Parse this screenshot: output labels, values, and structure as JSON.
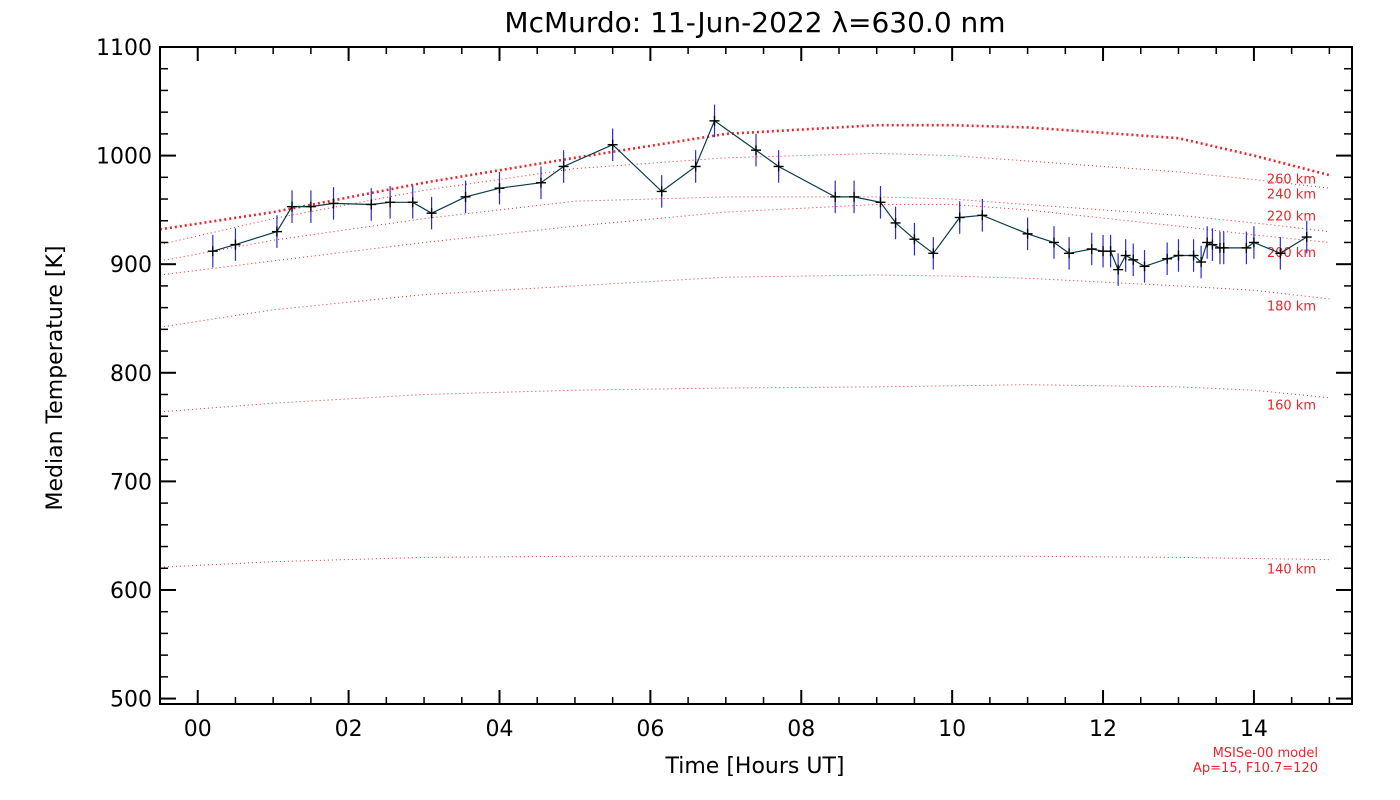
{
  "chart_data": {
    "type": "line",
    "title": "McMurdo: 11-Jun-2022 λ=630.0 nm",
    "xlabel": "Time [Hours UT]",
    "ylabel": "Median Temperature [K]",
    "xlim": [
      -0.5,
      15.3
    ],
    "ylim": [
      495,
      1100
    ],
    "xticks": [
      0,
      2,
      4,
      6,
      8,
      10,
      12,
      14
    ],
    "xtick_labels": [
      "00",
      "02",
      "04",
      "06",
      "08",
      "10",
      "12",
      "14"
    ],
    "yticks": [
      500,
      600,
      700,
      800,
      900,
      1000,
      1100
    ],
    "ytick_labels": [
      "500",
      "600",
      "700",
      "800",
      "900",
      "1000",
      "1100"
    ],
    "grid": false,
    "colors": {
      "data_line": "#0a3a4a",
      "error_bars": "#2b2bd6",
      "markers": "#000000",
      "model": "#e8262b",
      "axes": "#000000"
    },
    "series": [
      {
        "kind": "measured",
        "error": 15,
        "x": [
          0.2,
          0.5,
          1.05,
          1.25,
          1.5,
          1.8,
          2.3,
          2.55,
          2.85,
          3.1,
          3.55,
          4.0,
          4.55,
          4.85,
          5.5,
          6.15,
          6.6,
          6.85,
          7.4,
          7.7,
          8.45,
          8.7,
          9.05,
          9.25,
          9.5,
          9.75,
          10.1,
          10.4,
          11.0,
          11.35,
          11.55,
          11.85,
          12.0,
          12.1,
          12.2,
          12.3,
          12.4,
          12.55,
          12.85,
          13.0,
          13.2,
          13.3,
          13.38,
          13.45,
          13.55,
          13.6,
          13.9,
          14.0,
          14.35,
          14.7
        ],
        "y": [
          912,
          918,
          930,
          953,
          953,
          956,
          955,
          957,
          957,
          947,
          962,
          970,
          975,
          990,
          1010,
          967,
          990,
          1032,
          1005,
          990,
          962,
          962,
          957,
          938,
          923,
          910,
          943,
          945,
          928,
          920,
          910,
          914,
          912,
          912,
          895,
          908,
          904,
          898,
          905,
          908,
          908,
          902,
          920,
          918,
          915,
          915,
          915,
          920,
          910,
          925
        ]
      },
      {
        "kind": "model",
        "name": "260 km",
        "x": [
          -0.5,
          1,
          3,
          5,
          7,
          9,
          10,
          11,
          13,
          14,
          15
        ],
        "y": [
          932,
          948,
          975,
          998,
          1020,
          1028,
          1028,
          1026,
          1016,
          1000,
          982
        ]
      },
      {
        "kind": "model",
        "name": "240 km",
        "x": [
          -0.5,
          1,
          3,
          5,
          7,
          9,
          10,
          11,
          13,
          14,
          15
        ],
        "y": [
          918,
          942,
          968,
          988,
          998,
          1002,
          1000,
          995,
          985,
          978,
          970
        ]
      },
      {
        "kind": "model",
        "name": "220 km",
        "x": [
          -0.5,
          1,
          3,
          5,
          7,
          9,
          10,
          11,
          13,
          14,
          15
        ],
        "y": [
          903,
          922,
          942,
          958,
          962,
          962,
          960,
          955,
          945,
          938,
          930
        ]
      },
      {
        "kind": "model",
        "name": "200 km",
        "x": [
          -0.5,
          1,
          3,
          5,
          7,
          9,
          10,
          11,
          13,
          14,
          15
        ],
        "y": [
          890,
          903,
          920,
          935,
          948,
          955,
          955,
          950,
          935,
          927,
          920
        ]
      },
      {
        "kind": "model",
        "name": "180 km",
        "x": [
          -0.5,
          1,
          3,
          5,
          7,
          9,
          10,
          11,
          13,
          14,
          15
        ],
        "y": [
          842,
          858,
          872,
          880,
          888,
          890,
          889,
          887,
          880,
          876,
          868
        ]
      },
      {
        "kind": "model",
        "name": "160 km",
        "x": [
          -0.5,
          1,
          3,
          5,
          7,
          9,
          10,
          11,
          13,
          14,
          15
        ],
        "y": [
          764,
          772,
          780,
          784,
          786,
          787,
          788,
          789,
          787,
          784,
          777
        ]
      },
      {
        "kind": "model",
        "name": "140 km",
        "x": [
          -0.5,
          1,
          3,
          5,
          7,
          9,
          10,
          11,
          13,
          14,
          15
        ],
        "y": [
          621,
          626,
          630,
          631,
          631,
          631,
          631,
          631,
          630,
          629,
          628
        ]
      }
    ],
    "model_labels": [
      {
        "text": "260 km",
        "y": 979
      },
      {
        "text": "240 km",
        "y": 965
      },
      {
        "text": "220 km",
        "y": 945
      },
      {
        "text": "200 km",
        "y": 911
      },
      {
        "text": "180 km",
        "y": 862
      },
      {
        "text": "160 km",
        "y": 771
      },
      {
        "text": "140 km",
        "y": 620
      }
    ],
    "model_note": [
      "MSISe-00 model",
      "Ap=15, F10.7=120"
    ]
  }
}
